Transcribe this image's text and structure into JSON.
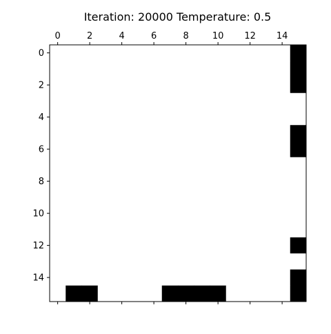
{
  "chart_data": {
    "type": "heatmap",
    "title": "Iteration: 20000 Temperature: 0.5",
    "xlabel": "",
    "ylabel": "",
    "rows": 16,
    "cols": 16,
    "xticks": [
      0,
      2,
      4,
      6,
      8,
      10,
      12,
      14
    ],
    "yticks": [
      0,
      2,
      4,
      6,
      8,
      10,
      12,
      14
    ],
    "grid": false,
    "colormap": {
      "0": "#ffffff",
      "1": "#000000"
    },
    "black_cells": [
      [
        0,
        15
      ],
      [
        1,
        15
      ],
      [
        2,
        15
      ],
      [
        5,
        15
      ],
      [
        6,
        15
      ],
      [
        12,
        15
      ],
      [
        14,
        15
      ],
      [
        15,
        15
      ],
      [
        15,
        1
      ],
      [
        15,
        2
      ],
      [
        15,
        7
      ],
      [
        15,
        8
      ],
      [
        15,
        9
      ],
      [
        15,
        10
      ]
    ]
  }
}
